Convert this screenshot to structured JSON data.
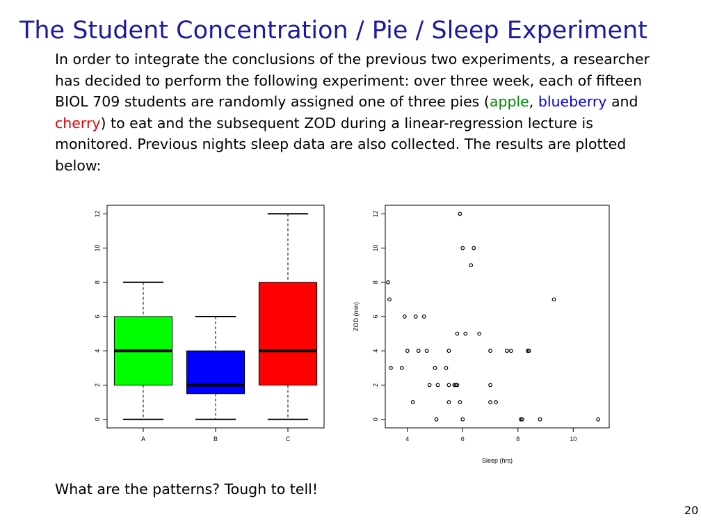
{
  "slide": {
    "title": "The Student Concentration / Pie / Sleep Experiment",
    "intro_before": "In order to integrate the conclusions of the previous two experiments, a researcher has decided to perform the following experiment: over three week, each of fifteen BIOL 709 students are randomly assigned one of three pies (",
    "pie_apple": "apple",
    "sep1": ", ",
    "pie_blueberry": "blueberry",
    "sep2": " and ",
    "pie_cherry": "cherry",
    "intro_after": ") to eat and the subsequent ZOD during a linear-regression lecture is monitored. Previous nights sleep data are also collected. The results are plotted below:",
    "footer": "What are the patterns? Tough to tell!",
    "page_number": "20"
  },
  "colors": {
    "title": "#1a1aa6",
    "apple": "#008a00",
    "blueberry": "#0000e6",
    "cherry": "#e60000"
  },
  "chart_data": [
    {
      "type": "box",
      "categories": [
        "A",
        "B",
        "C"
      ],
      "boxes": [
        {
          "category": "A",
          "min": 0,
          "q1": 2,
          "median": 4,
          "q3": 6,
          "max": 8,
          "color": "#00ff00"
        },
        {
          "category": "B",
          "min": 0,
          "q1": 1.5,
          "median": 2,
          "q3": 4,
          "max": 6,
          "color": "#0000ff"
        },
        {
          "category": "C",
          "min": 0,
          "q1": 2,
          "median": 4,
          "q3": 8,
          "max": 12,
          "color": "#ff0000"
        }
      ],
      "y_ticks": [
        0,
        2,
        4,
        6,
        8,
        10,
        12
      ],
      "ylim": [
        -0.5,
        12.5
      ],
      "title": "",
      "xlabel": "",
      "ylabel": ""
    },
    {
      "type": "scatter",
      "xlabel": "Sleep (hrs)",
      "ylabel": "ZOD (min)",
      "x_ticks": [
        4,
        6,
        8,
        10
      ],
      "y_ticks": [
        0,
        2,
        4,
        6,
        8,
        10,
        12
      ],
      "xlim": [
        3.2,
        11.3
      ],
      "ylim": [
        -0.5,
        12.5
      ],
      "points": [
        [
          5.9,
          12
        ],
        [
          6.0,
          10
        ],
        [
          6.4,
          10
        ],
        [
          6.3,
          9
        ],
        [
          3.3,
          8
        ],
        [
          3.35,
          7
        ],
        [
          9.3,
          7
        ],
        [
          3.9,
          6
        ],
        [
          4.3,
          6
        ],
        [
          4.6,
          6
        ],
        [
          5.8,
          5
        ],
        [
          6.1,
          5
        ],
        [
          6.6,
          5
        ],
        [
          4.0,
          4
        ],
        [
          4.4,
          4
        ],
        [
          4.7,
          4
        ],
        [
          5.5,
          4
        ],
        [
          7.0,
          4
        ],
        [
          7.6,
          4
        ],
        [
          7.75,
          4
        ],
        [
          8.35,
          4
        ],
        [
          8.4,
          4
        ],
        [
          3.4,
          3
        ],
        [
          3.8,
          3
        ],
        [
          5.0,
          3
        ],
        [
          5.4,
          3
        ],
        [
          4.8,
          2
        ],
        [
          5.1,
          2
        ],
        [
          5.5,
          2
        ],
        [
          5.7,
          2
        ],
        [
          5.75,
          2
        ],
        [
          5.8,
          2
        ],
        [
          7.0,
          2
        ],
        [
          4.2,
          1
        ],
        [
          5.5,
          1
        ],
        [
          5.9,
          1
        ],
        [
          7.0,
          1
        ],
        [
          7.2,
          1
        ],
        [
          5.05,
          0
        ],
        [
          6.0,
          0
        ],
        [
          8.1,
          0
        ],
        [
          8.15,
          0
        ],
        [
          8.8,
          0
        ],
        [
          10.9,
          0
        ]
      ]
    }
  ]
}
